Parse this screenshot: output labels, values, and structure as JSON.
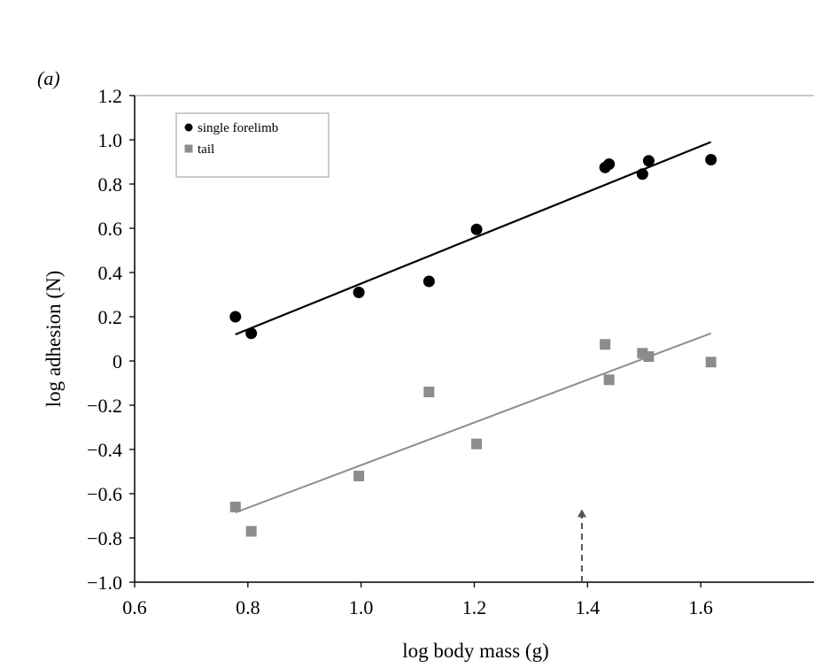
{
  "chart_data": {
    "type": "scatter",
    "panel_label": "a",
    "xlabel": "log body mass (g)",
    "ylabel": "log adhesion (N)",
    "xlim": [
      0.6,
      1.8
    ],
    "ylim": [
      -1.0,
      1.2
    ],
    "x_ticks": [
      0.6,
      0.8,
      1.0,
      1.2,
      1.4,
      1.6
    ],
    "x_tick_labels": [
      "0.6",
      "0.8",
      "1.0",
      "1.2",
      "1.4",
      "1.6"
    ],
    "y_ticks": [
      1.2,
      1.0,
      0.8,
      0.6,
      0.4,
      0.2,
      0,
      -0.2,
      -0.4,
      -0.6,
      -0.8,
      -1.0
    ],
    "y_tick_labels": [
      "1.2",
      "1.0",
      "0.8",
      "0.6",
      "0.4",
      "0.2",
      "0",
      "−0.2",
      "−0.4",
      "−0.6",
      "−0.8",
      "−1.0"
    ],
    "grid": false,
    "legend_position": "top-left",
    "series": [
      {
        "name": "single forelimb",
        "marker": "circle",
        "color": "#000000",
        "points": [
          {
            "x": 0.778,
            "y": 0.2
          },
          {
            "x": 0.806,
            "y": 0.125
          },
          {
            "x": 0.996,
            "y": 0.31
          },
          {
            "x": 1.12,
            "y": 0.36
          },
          {
            "x": 1.204,
            "y": 0.595
          },
          {
            "x": 1.431,
            "y": 0.875
          },
          {
            "x": 1.438,
            "y": 0.89
          },
          {
            "x": 1.497,
            "y": 0.845
          },
          {
            "x": 1.508,
            "y": 0.905
          },
          {
            "x": 1.618,
            "y": 0.91
          }
        ],
        "fit": {
          "x": [
            0.778,
            1.618
          ],
          "y": [
            0.12,
            0.99
          ]
        }
      },
      {
        "name": "tail",
        "marker": "square",
        "color": "#8c8c8c",
        "points": [
          {
            "x": 0.778,
            "y": -0.66
          },
          {
            "x": 0.806,
            "y": -0.77
          },
          {
            "x": 0.996,
            "y": -0.52
          },
          {
            "x": 1.12,
            "y": -0.14
          },
          {
            "x": 1.204,
            "y": -0.375
          },
          {
            "x": 1.431,
            "y": 0.075
          },
          {
            "x": 1.438,
            "y": -0.085
          },
          {
            "x": 1.497,
            "y": 0.035
          },
          {
            "x": 1.508,
            "y": 0.02
          },
          {
            "x": 1.618,
            "y": -0.005
          }
        ],
        "fit": {
          "x": [
            0.778,
            1.618
          ],
          "y": [
            -0.685,
            0.125
          ]
        }
      }
    ],
    "annotations": [
      {
        "type": "dashed-arrow",
        "x": 1.39,
        "y_from": -1.0,
        "y_to": -0.67
      }
    ]
  }
}
